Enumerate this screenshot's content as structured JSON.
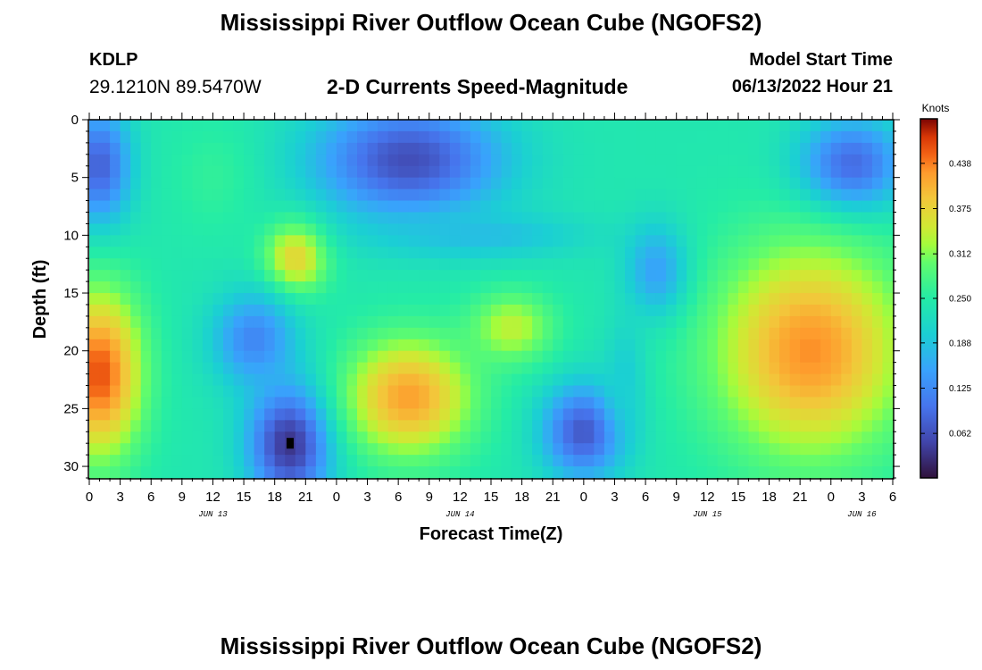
{
  "header": {
    "title": "Mississippi River Outflow Ocean Cube (NGOFS2)",
    "station_id": "KDLP",
    "station_coords": "29.1210N  89.5470W",
    "subtitle": "2-D Currents Speed-Magnitude",
    "model_start_label": "Model Start Time",
    "model_start_value": "06/13/2022 Hour 21"
  },
  "footer": {
    "title": "Mississippi River Outflow Ocean Cube (NGOFS2)"
  },
  "chart_data": {
    "type": "heatmap",
    "title": "2-D Currents Speed-Magnitude",
    "xlabel": "Forecast Time(Z)",
    "ylabel": "Depth (ft)",
    "colorbar_label": "Knots",
    "x_hours_range": [
      0,
      78
    ],
    "x_tick_labels": [
      "0",
      "3",
      "6",
      "9",
      "12",
      "15",
      "18",
      "21",
      "0",
      "3",
      "6",
      "9",
      "12",
      "15",
      "18",
      "21",
      "0",
      "3",
      "6",
      "9",
      "12",
      "15",
      "18",
      "21",
      "0",
      "3",
      "6"
    ],
    "date_labels": [
      {
        "label": "JUN 13",
        "hour": 12
      },
      {
        "label": "JUN 14",
        "hour": 36
      },
      {
        "label": "JUN 15",
        "hour": 60
      },
      {
        "label": "JUN 16",
        "hour": 75
      }
    ],
    "ylim": [
      0,
      31
    ],
    "y_ticks": [
      0,
      5,
      10,
      15,
      20,
      25,
      30
    ],
    "y_tick_labels": [
      "0",
      "5",
      "10",
      "15",
      "20",
      "25",
      "30"
    ],
    "color_range": [
      0,
      0.5
    ],
    "colorbar_ticks": [
      0.062,
      0.125,
      0.188,
      0.25,
      0.312,
      0.375,
      0.438
    ],
    "colorbar_tick_labels": [
      "0.062",
      "0.125",
      "0.188",
      "0.250",
      "0.312",
      "0.375",
      "0.438"
    ],
    "base_speed": 0.24,
    "features": [
      {
        "hour": 1,
        "depth": 4,
        "rx": 3,
        "ry": 5,
        "value": 0.08
      },
      {
        "hour": 31,
        "depth": 3.5,
        "rx": 9,
        "ry": 5,
        "value": 0.06
      },
      {
        "hour": 74,
        "depth": 4,
        "rx": 5,
        "ry": 4,
        "value": 0.08
      },
      {
        "hour": 19.5,
        "depth": 28,
        "rx": 4,
        "ry": 5,
        "value": 0.03
      },
      {
        "hour": 48,
        "depth": 27,
        "rx": 4,
        "ry": 4,
        "value": 0.07
      },
      {
        "hour": 1,
        "depth": 22,
        "rx": 4,
        "ry": 7,
        "value": 0.46
      },
      {
        "hour": 20,
        "depth": 12,
        "rx": 3,
        "ry": 3,
        "value": 0.38
      },
      {
        "hour": 31,
        "depth": 24,
        "rx": 6,
        "ry": 5,
        "value": 0.42
      },
      {
        "hour": 41,
        "depth": 18,
        "rx": 4,
        "ry": 3,
        "value": 0.34
      },
      {
        "hour": 70,
        "depth": 20,
        "rx": 9,
        "ry": 9,
        "value": 0.43
      },
      {
        "hour": 16,
        "depth": 19,
        "rx": 4,
        "ry": 4,
        "value": 0.12
      },
      {
        "hour": 55,
        "depth": 13,
        "rx": 3,
        "ry": 4,
        "value": 0.15
      },
      {
        "hour": 52,
        "depth": 22,
        "rx": 2,
        "ry": 5,
        "value": 0.2
      },
      {
        "hour": 38,
        "depth": 10,
        "rx": 10,
        "ry": 2,
        "value": 0.18
      },
      {
        "hour": 12,
        "depth": 5,
        "rx": 4,
        "ry": 5,
        "value": 0.26
      }
    ],
    "marker": {
      "hour": 19.5,
      "depth": 28
    }
  }
}
